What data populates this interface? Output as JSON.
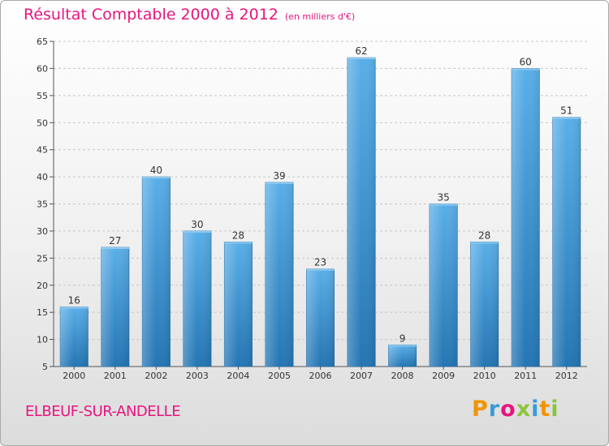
{
  "header": {
    "title": "Résultat Comptable 2000 à 2012",
    "unit": "(en milliers d'€)"
  },
  "commune": "ELBEUF-SUR-ANDELLE",
  "logo": {
    "text": "Proxiti",
    "letters": [
      {
        "ch": "P",
        "color": "#f29400"
      },
      {
        "ch": "r",
        "color": "#3a9ad9"
      },
      {
        "ch": "o",
        "color": "#e8157f"
      },
      {
        "ch": "x",
        "color": "#8bc53f"
      },
      {
        "ch": "i",
        "color": "#3a9ad9"
      },
      {
        "ch": "t",
        "color": "#f29400"
      },
      {
        "ch": "i",
        "color": "#8bc53f"
      }
    ]
  },
  "colors": {
    "accent": "#e8157f",
    "bar_top": "#5aafe8",
    "bar_bottom": "#2475b3",
    "grid": "#c8c8c8"
  },
  "chart_data": {
    "type": "bar",
    "categories": [
      "2000",
      "2001",
      "2002",
      "2003",
      "2004",
      "2005",
      "2006",
      "2007",
      "2008",
      "2009",
      "2010",
      "2011",
      "2012"
    ],
    "values": [
      16,
      27,
      40,
      30,
      28,
      39,
      23,
      62,
      9,
      35,
      28,
      60,
      51
    ],
    "title": "Résultat Comptable 2000 à 2012",
    "xlabel": "",
    "ylabel": "",
    "ylim": [
      5,
      65
    ],
    "yticks": [
      5,
      10,
      15,
      20,
      25,
      30,
      35,
      40,
      45,
      50,
      55,
      60,
      65
    ],
    "grid": true,
    "legend": "none"
  }
}
